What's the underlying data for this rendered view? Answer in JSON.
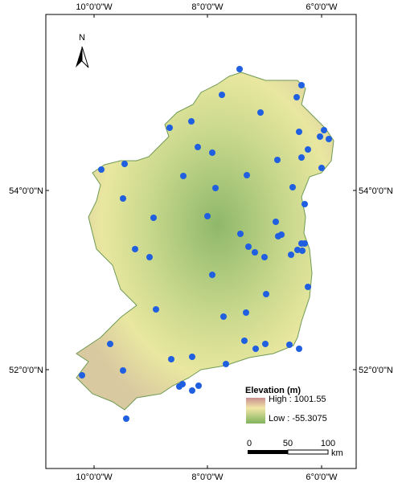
{
  "north_arrow": "N",
  "graticule": {
    "top": [
      "10°0'0\"W",
      "8°0'0\"W",
      "6°0'0\"W"
    ],
    "bottom": [
      "10°0'0\"W",
      "8°0'0\"W",
      "6°0'0\"W"
    ],
    "left": [
      "54°0'0\"N",
      "52°0'0\"N"
    ],
    "right": [
      "54°0'0\"N",
      "52°0'0\"N"
    ]
  },
  "legend": {
    "title": "Elevation (m)",
    "high": "High : 1001.55",
    "low": "Low : -55.3075"
  },
  "scale_bar": {
    "labels": [
      "0",
      "50",
      "100"
    ],
    "unit": "km"
  }
}
